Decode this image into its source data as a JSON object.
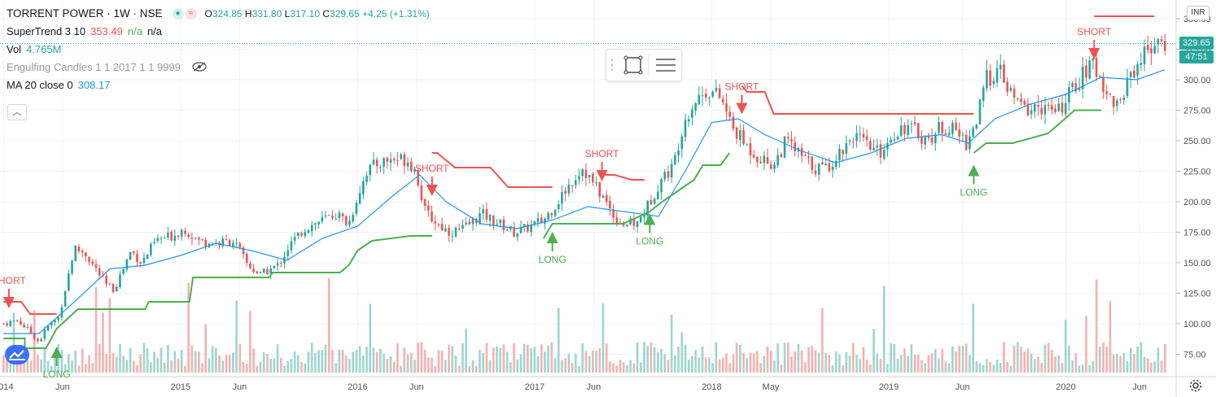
{
  "header": {
    "symbol_title": "TORRENT POWER · 1W · NSE",
    "open_label": "O",
    "open": "324.85",
    "high_label": "H",
    "high": "331.80",
    "low_label": "L",
    "low": "317.10",
    "close_label": "C",
    "close": "329.65",
    "change": "+4.25 (+1.31%)"
  },
  "indicators": {
    "supertrend": {
      "label": "SuperTrend 3 10",
      "value": "353.49",
      "v2": "n/a",
      "v3": "n/a"
    },
    "volume": {
      "label": "Vol",
      "value": "4.765M"
    },
    "engulfing": {
      "label": "Engulfing Candles 1 1 2017 1 1 9999"
    },
    "ma": {
      "label": "MA 20 close 0",
      "value": "308.17"
    }
  },
  "currency": "INR",
  "last_price_tag": "329.65",
  "countdown_tag": "47:51",
  "colors": {
    "up": "#26a69a",
    "down": "#ef5350",
    "ma": "#2196f3",
    "st_up": "#4caf50",
    "st_down": "#ef5350",
    "vol_up": "#9fd5cf",
    "vol_down": "#f6b1af",
    "grid": "#f0f3fa",
    "axis_text": "#50535e",
    "price_line": "#26a69a"
  },
  "icons": [
    "compare-icon",
    "hide-eye-icon",
    "collapse-chevron-icon",
    "rectangle-select-icon",
    "list-settings-icon",
    "gear-icon",
    "logo-icon"
  ],
  "chart_data": {
    "type": "candlestick",
    "ylim": [
      60,
      360
    ],
    "yticks": [
      75,
      100,
      125,
      150,
      175,
      200,
      225,
      250,
      275,
      300,
      325,
      350
    ],
    "xlabels": [
      {
        "t": 0,
        "label": "2014"
      },
      {
        "t": 0.3333,
        "label": "Jun"
      },
      {
        "t": 1,
        "label": "2015"
      },
      {
        "t": 1.3333,
        "label": "Jun"
      },
      {
        "t": 2,
        "label": "2016"
      },
      {
        "t": 2.3333,
        "label": "Jun"
      },
      {
        "t": 3,
        "label": "2017"
      },
      {
        "t": 3.3333,
        "label": "Jun"
      },
      {
        "t": 4,
        "label": "2018"
      },
      {
        "t": 4.3333,
        "label": "May"
      },
      {
        "t": 5,
        "label": "2019"
      },
      {
        "t": 5.4167,
        "label": "Jun"
      },
      {
        "t": 6,
        "label": "2020"
      },
      {
        "t": 6.4167,
        "label": "Jun"
      }
    ],
    "price_path": [
      [
        0,
        100
      ],
      [
        0.08,
        103
      ],
      [
        0.16,
        92
      ],
      [
        0.2,
        85
      ],
      [
        0.25,
        98
      ],
      [
        0.31,
        105
      ],
      [
        0.34,
        123
      ],
      [
        0.4,
        162
      ],
      [
        0.46,
        158
      ],
      [
        0.52,
        145
      ],
      [
        0.58,
        132
      ],
      [
        0.62,
        128
      ],
      [
        0.66,
        140
      ],
      [
        0.72,
        160
      ],
      [
        0.78,
        150
      ],
      [
        0.86,
        168
      ],
      [
        0.95,
        172
      ],
      [
        1.02,
        178
      ],
      [
        1.1,
        168
      ],
      [
        1.2,
        166
      ],
      [
        1.3,
        168
      ],
      [
        1.38,
        148
      ],
      [
        1.45,
        140
      ],
      [
        1.55,
        148
      ],
      [
        1.62,
        165
      ],
      [
        1.7,
        178
      ],
      [
        1.8,
        185
      ],
      [
        1.88,
        190
      ],
      [
        1.95,
        182
      ],
      [
        2.0,
        205
      ],
      [
        2.05,
        225
      ],
      [
        2.12,
        232
      ],
      [
        2.2,
        235
      ],
      [
        2.28,
        235
      ],
      [
        2.33,
        225
      ],
      [
        2.38,
        192
      ],
      [
        2.45,
        182
      ],
      [
        2.52,
        175
      ],
      [
        2.6,
        178
      ],
      [
        2.7,
        190
      ],
      [
        2.8,
        182
      ],
      [
        2.88,
        175
      ],
      [
        2.95,
        178
      ],
      [
        3.05,
        185
      ],
      [
        3.12,
        198
      ],
      [
        3.2,
        215
      ],
      [
        3.27,
        228
      ],
      [
        3.33,
        215
      ],
      [
        3.38,
        205
      ],
      [
        3.45,
        188
      ],
      [
        3.5,
        182
      ],
      [
        3.58,
        182
      ],
      [
        3.65,
        200
      ],
      [
        3.72,
        220
      ],
      [
        3.78,
        228
      ],
      [
        3.84,
        265
      ],
      [
        3.9,
        282
      ],
      [
        3.98,
        292
      ],
      [
        4.05,
        285
      ],
      [
        4.12,
        260
      ],
      [
        4.2,
        245
      ],
      [
        4.28,
        235
      ],
      [
        4.35,
        230
      ],
      [
        4.42,
        250
      ],
      [
        4.5,
        238
      ],
      [
        4.58,
        228
      ],
      [
        4.65,
        228
      ],
      [
        4.72,
        240
      ],
      [
        4.8,
        255
      ],
      [
        4.88,
        245
      ],
      [
        4.95,
        240
      ],
      [
        5.02,
        255
      ],
      [
        5.08,
        262
      ],
      [
        5.15,
        258
      ],
      [
        5.22,
        250
      ],
      [
        5.3,
        262
      ],
      [
        5.38,
        258
      ],
      [
        5.44,
        248
      ],
      [
        5.5,
        268
      ],
      [
        5.55,
        300
      ],
      [
        5.62,
        308
      ],
      [
        5.7,
        285
      ],
      [
        5.78,
        275
      ],
      [
        5.86,
        278
      ],
      [
        5.95,
        272
      ],
      [
        6.03,
        290
      ],
      [
        6.1,
        305
      ],
      [
        6.16,
        312
      ],
      [
        6.2,
        300
      ],
      [
        6.25,
        285
      ],
      [
        6.3,
        278
      ],
      [
        6.36,
        305
      ],
      [
        6.42,
        315
      ],
      [
        6.47,
        330
      ],
      [
        6.52,
        326
      ],
      [
        6.56,
        329.65
      ]
    ],
    "ma_path": [
      [
        0,
        92
      ],
      [
        0.2,
        92
      ],
      [
        0.4,
        118
      ],
      [
        0.6,
        145
      ],
      [
        0.8,
        148
      ],
      [
        1.0,
        156
      ],
      [
        1.2,
        166
      ],
      [
        1.4,
        160
      ],
      [
        1.6,
        152
      ],
      [
        1.8,
        170
      ],
      [
        2.0,
        180
      ],
      [
        2.2,
        205
      ],
      [
        2.35,
        222
      ],
      [
        2.5,
        200
      ],
      [
        2.7,
        182
      ],
      [
        2.9,
        178
      ],
      [
        3.1,
        185
      ],
      [
        3.3,
        196
      ],
      [
        3.5,
        192
      ],
      [
        3.7,
        188
      ],
      [
        3.85,
        225
      ],
      [
        4.0,
        265
      ],
      [
        4.15,
        268
      ],
      [
        4.3,
        255
      ],
      [
        4.5,
        242
      ],
      [
        4.7,
        232
      ],
      [
        4.9,
        240
      ],
      [
        5.1,
        252
      ],
      [
        5.3,
        255
      ],
      [
        5.45,
        248
      ],
      [
        5.6,
        268
      ],
      [
        5.8,
        280
      ],
      [
        6.0,
        288
      ],
      [
        6.2,
        302
      ],
      [
        6.4,
        300
      ],
      [
        6.56,
        308.17
      ]
    ],
    "supertrend_up": [
      [
        [
          0,
          88
        ],
        [
          0.12,
          88
        ],
        [
          0.12,
          80
        ],
        [
          0.24,
          80
        ],
        [
          0.3,
          96
        ],
        [
          0.42,
          112
        ],
        [
          0.8,
          112
        ],
        [
          0.82,
          118
        ],
        [
          1.05,
          118
        ],
        [
          1.07,
          138
        ],
        [
          1.5,
          138
        ],
        [
          1.52,
          142
        ],
        [
          1.9,
          142
        ],
        [
          1.95,
          148
        ],
        [
          2.0,
          160
        ],
        [
          2.08,
          168
        ],
        [
          2.3,
          172
        ],
        [
          2.42,
          172
        ]
      ],
      [
        [
          3.05,
          170
        ],
        [
          3.1,
          182
        ],
        [
          3.35,
          182
        ],
        [
          3.5,
          182
        ],
        [
          3.65,
          192
        ],
        [
          3.72,
          200
        ],
        [
          3.9,
          218
        ],
        [
          3.95,
          230
        ],
        [
          4.05,
          230
        ],
        [
          4.1,
          240
        ]
      ],
      [
        [
          5.48,
          240
        ],
        [
          5.55,
          248
        ],
        [
          5.7,
          248
        ],
        [
          5.9,
          256
        ],
        [
          6.05,
          275
        ],
        [
          6.1,
          275
        ],
        [
          6.2,
          275
        ]
      ]
    ],
    "supertrend_down": [
      [
        [
          0,
          118
        ],
        [
          0.1,
          118
        ],
        [
          0.15,
          108
        ],
        [
          0.3,
          108
        ]
      ],
      [
        [
          2.42,
          240
        ],
        [
          2.45,
          240
        ],
        [
          2.55,
          228
        ],
        [
          2.75,
          228
        ],
        [
          2.85,
          212
        ],
        [
          3.0,
          212
        ],
        [
          3.1,
          212
        ]
      ],
      [
        [
          3.38,
          222
        ],
        [
          3.45,
          222
        ],
        [
          3.55,
          218
        ],
        [
          3.62,
          218
        ]
      ],
      [
        [
          4.17,
          295
        ],
        [
          4.2,
          290
        ],
        [
          4.3,
          290
        ],
        [
          4.35,
          272
        ],
        [
          4.7,
          272
        ],
        [
          5.2,
          272
        ],
        [
          5.48,
          272
        ]
      ],
      [
        [
          6.16,
          352
        ],
        [
          6.25,
          352
        ],
        [
          6.5,
          352
        ]
      ]
    ],
    "signals": [
      {
        "type": "SHORT",
        "t": 0.03,
        "price": 118
      },
      {
        "type": "LONG",
        "t": 0.3,
        "price": 76
      },
      {
        "type": "SHORT",
        "t": 2.42,
        "price": 210
      },
      {
        "type": "LONG",
        "t": 3.1,
        "price": 170
      },
      {
        "type": "SHORT",
        "t": 3.38,
        "price": 222
      },
      {
        "type": "LONG",
        "t": 3.65,
        "price": 185
      },
      {
        "type": "SHORT",
        "t": 4.17,
        "price": 277
      },
      {
        "type": "LONG",
        "t": 5.48,
        "price": 225
      },
      {
        "type": "SHORT",
        "t": 6.16,
        "price": 322
      }
    ]
  }
}
